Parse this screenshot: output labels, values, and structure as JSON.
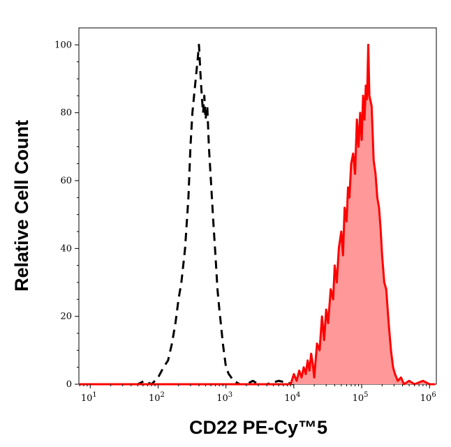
{
  "chart_data": {
    "type": "area",
    "xlabel": "CD22 PE-Cy™5",
    "ylabel": "Relative Cell Count",
    "x_scale": "log",
    "xlim": [
      6.8,
      1260000
    ],
    "ylim": [
      0,
      105
    ],
    "x_ticks": [
      {
        "base": "10",
        "exp": "1",
        "value": 10
      },
      {
        "base": "10",
        "exp": "2",
        "value": 100
      },
      {
        "base": "10",
        "exp": "3",
        "value": 1000
      },
      {
        "base": "10",
        "exp": "4",
        "value": 10000
      },
      {
        "base": "10",
        "exp": "5",
        "value": 100000
      },
      {
        "base": "10",
        "exp": "6",
        "value": 1000000
      }
    ],
    "y_ticks": [
      "0",
      "20",
      "40",
      "60",
      "80",
      "100"
    ],
    "grid": false,
    "legend": "none",
    "series": [
      {
        "style": "dashed",
        "color": "#000000",
        "fill": "none",
        "x": [
          7,
          20,
          50,
          63,
          80,
          100,
          120,
          140,
          160,
          180,
          200,
          220,
          250,
          280,
          300,
          320,
          350,
          380,
          400,
          420,
          440,
          460,
          480,
          500,
          530,
          560,
          600,
          650,
          700,
          750,
          800,
          850,
          900,
          1000,
          1100,
          1300,
          1600,
          2000,
          2500,
          3000,
          4000,
          6000,
          10000
        ],
        "y": [
          0,
          0,
          0,
          1,
          0,
          2,
          5,
          7,
          12,
          18,
          25,
          30,
          40,
          55,
          70,
          80,
          88,
          95,
          100,
          92,
          85,
          80,
          85,
          78,
          82,
          70,
          60,
          48,
          38,
          28,
          22,
          17,
          12,
          5,
          3,
          1,
          0,
          0,
          1,
          0,
          0,
          1,
          0
        ]
      },
      {
        "style": "solid",
        "color": "#ff0000",
        "fill": "#ff9999",
        "x": [
          7,
          5000,
          9000,
          10000,
          11000,
          12000,
          13000,
          14000,
          15000,
          16000,
          17000,
          18000,
          19000,
          20000,
          22000,
          24000,
          26000,
          28000,
          30000,
          32000,
          35000,
          38000,
          40000,
          43000,
          46000,
          50000,
          53000,
          56000,
          60000,
          63000,
          66000,
          70000,
          75000,
          80000,
          85000,
          90000,
          95000,
          100000,
          105000,
          110000,
          115000,
          120000,
          125000,
          130000,
          140000,
          150000,
          160000,
          170000,
          180000,
          190000,
          200000,
          215000,
          230000,
          250000,
          270000,
          290000,
          310000,
          340000,
          380000,
          420000,
          500000,
          600000,
          800000,
          1000000,
          1200000
        ],
        "y": [
          0,
          0,
          0,
          3,
          1,
          4,
          2,
          5,
          3,
          7,
          4,
          9,
          6,
          2,
          12,
          10,
          20,
          13,
          22,
          18,
          28,
          25,
          35,
          30,
          40,
          45,
          38,
          52,
          48,
          58,
          55,
          65,
          68,
          62,
          78,
          70,
          80,
          72,
          85,
          78,
          88,
          84,
          100,
          85,
          82,
          66,
          62,
          55,
          52,
          46,
          38,
          30,
          28,
          18,
          10,
          5,
          3,
          1,
          2,
          0,
          1,
          0,
          1,
          0,
          0
        ]
      }
    ]
  }
}
